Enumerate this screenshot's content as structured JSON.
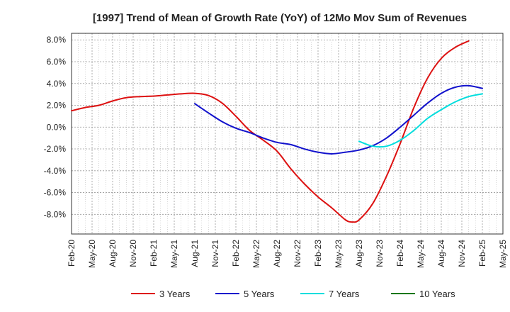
{
  "chart_data": {
    "type": "line",
    "title": "[1997]  Trend of Mean of Growth Rate (YoY) of 12Mo Mov Sum of Revenues",
    "xlabel": "",
    "ylabel": "",
    "ylim": [
      -9.8,
      8.6
    ],
    "ytick_values": [
      -8,
      -6,
      -4,
      -2,
      0,
      2,
      4,
      6,
      8
    ],
    "ytick_labels": [
      "-8.0%",
      "-6.0%",
      "-4.0%",
      "-2.0%",
      "0.0%",
      "2.0%",
      "4.0%",
      "6.0%",
      "8.0%"
    ],
    "xtick_labels": [
      "Feb-20",
      "May-20",
      "Aug-20",
      "Nov-20",
      "Feb-21",
      "May-21",
      "Aug-21",
      "Nov-21",
      "Feb-22",
      "May-22",
      "Aug-22",
      "Nov-22",
      "Feb-23",
      "May-23",
      "Aug-23",
      "Nov-23",
      "Feb-24",
      "May-24",
      "Aug-24",
      "Nov-24",
      "Feb-25",
      "May-25"
    ],
    "x_range_months": [
      0,
      63
    ],
    "grid": true,
    "legend_position": "bottom",
    "series": [
      {
        "name": "3 Years",
        "color": "#dd1111",
        "x_months": [
          0,
          2,
          4,
          6,
          8,
          10,
          12,
          14,
          16,
          18,
          20,
          22,
          24,
          26,
          28,
          30,
          32,
          34,
          36,
          38,
          40,
          41,
          42,
          44,
          46,
          48,
          50,
          52,
          54,
          56,
          58,
          60
        ],
        "values": [
          1.5,
          1.8,
          2.0,
          2.4,
          2.7,
          2.8,
          2.85,
          2.95,
          3.05,
          3.1,
          2.9,
          2.2,
          1.0,
          -0.3,
          -1.2,
          -2.2,
          -3.8,
          -5.2,
          -6.4,
          -7.4,
          -8.5,
          -8.7,
          -8.5,
          -7.0,
          -4.5,
          -1.5,
          1.8,
          4.5,
          6.3,
          7.3,
          7.9,
          null
        ]
      },
      {
        "name": "5 Years",
        "color": "#1111cc",
        "x_months": [
          18,
          20,
          22,
          24,
          26,
          28,
          30,
          32,
          34,
          36,
          38,
          40,
          42,
          44,
          46,
          48,
          50,
          52,
          54,
          56,
          58,
          60
        ],
        "values": [
          2.15,
          1.3,
          0.5,
          -0.1,
          -0.5,
          -1.0,
          -1.4,
          -1.6,
          -2.0,
          -2.3,
          -2.45,
          -2.3,
          -2.1,
          -1.7,
          -1.0,
          0.0,
          1.1,
          2.2,
          3.1,
          3.65,
          3.8,
          3.55
        ]
      },
      {
        "name": "7 Years",
        "color": "#00dddd",
        "x_months": [
          42,
          44,
          46,
          48,
          50,
          52,
          54,
          56,
          58,
          60
        ],
        "values": [
          -1.3,
          -1.75,
          -1.75,
          -1.2,
          -0.3,
          0.8,
          1.6,
          2.3,
          2.8,
          3.05
        ]
      },
      {
        "name": "10 Years",
        "color": "#117711",
        "x_months": [],
        "values": []
      }
    ]
  }
}
